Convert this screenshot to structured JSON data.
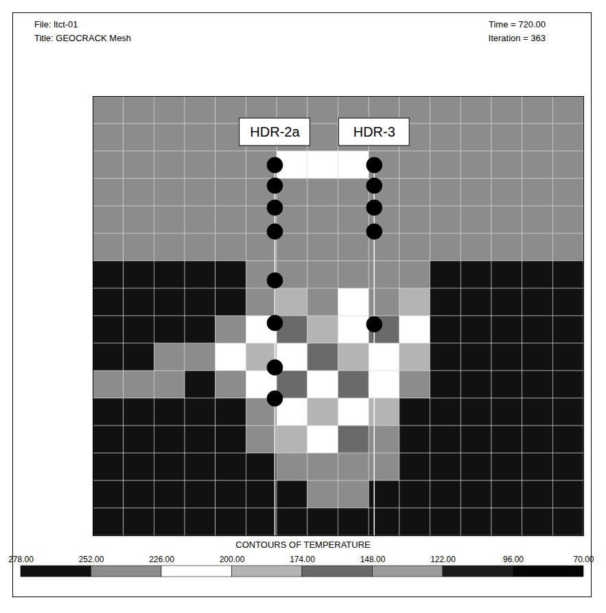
{
  "chart_data": {
    "type": "heatmap",
    "header": {
      "file": "File: ltct-01",
      "title": "Title: GEOCRACK Mesh",
      "time": "Time = 720.00",
      "iteration": "Iteration = 363"
    },
    "xlim": [
      0,
      16
    ],
    "ylim": [
      0,
      16
    ],
    "tick_labels": false,
    "cells": [
      [
        240,
        240,
        240,
        240,
        240,
        240,
        240,
        240,
        240,
        240,
        240,
        240,
        240,
        240,
        240,
        240
      ],
      [
        240,
        240,
        240,
        240,
        240,
        240,
        240,
        240,
        240,
        240,
        240,
        240,
        240,
        240,
        240,
        240
      ],
      [
        240,
        240,
        240,
        240,
        240,
        240,
        215,
        215,
        215,
        240,
        240,
        240,
        240,
        240,
        240,
        240
      ],
      [
        240,
        240,
        240,
        240,
        240,
        240,
        240,
        240,
        240,
        240,
        240,
        240,
        240,
        240,
        240,
        240
      ],
      [
        240,
        240,
        240,
        240,
        240,
        240,
        240,
        240,
        240,
        240,
        240,
        240,
        240,
        240,
        240,
        240
      ],
      [
        240,
        240,
        240,
        240,
        240,
        240,
        240,
        240,
        240,
        240,
        240,
        240,
        240,
        240,
        240,
        240
      ],
      [
        265,
        265,
        265,
        265,
        265,
        240,
        240,
        240,
        240,
        240,
        240,
        265,
        265,
        265,
        265,
        265
      ],
      [
        265,
        265,
        265,
        265,
        265,
        240,
        190,
        240,
        215,
        240,
        190,
        265,
        265,
        265,
        265,
        265
      ],
      [
        265,
        265,
        265,
        265,
        240,
        215,
        160,
        190,
        215,
        160,
        215,
        265,
        265,
        265,
        265,
        265
      ],
      [
        265,
        265,
        240,
        240,
        215,
        190,
        215,
        160,
        190,
        215,
        190,
        265,
        265,
        265,
        265,
        265
      ],
      [
        240,
        240,
        240,
        265,
        240,
        215,
        160,
        215,
        160,
        215,
        240,
        265,
        265,
        265,
        265,
        265
      ],
      [
        265,
        265,
        265,
        265,
        265,
        240,
        215,
        190,
        215,
        190,
        265,
        265,
        265,
        265,
        265,
        265
      ],
      [
        265,
        265,
        265,
        265,
        265,
        240,
        190,
        215,
        160,
        240,
        265,
        265,
        265,
        265,
        265,
        265
      ],
      [
        265,
        265,
        265,
        265,
        265,
        265,
        240,
        240,
        240,
        240,
        265,
        265,
        265,
        265,
        265,
        265
      ],
      [
        265,
        265,
        265,
        265,
        265,
        265,
        265,
        240,
        240,
        265,
        265,
        265,
        265,
        265,
        265,
        265
      ],
      [
        265,
        265,
        265,
        265,
        265,
        265,
        265,
        265,
        265,
        265,
        265,
        265,
        265,
        265,
        265,
        265
      ]
    ],
    "wells": [
      {
        "name": "HDR-2a",
        "x": 5.93,
        "points": [
          13.5,
          12.75,
          11.95,
          11.08,
          9.3,
          7.75,
          6.13,
          5.0
        ]
      },
      {
        "name": "HDR-3",
        "x": 9.17,
        "points": [
          13.5,
          12.75,
          11.95,
          11.08,
          7.7
        ]
      }
    ],
    "colorbar": {
      "title": "CONTOURS OF TEMPERATURE",
      "range": [
        278,
        70
      ],
      "ticks": [
        {
          "value": 278,
          "label": "278.00"
        },
        {
          "value": 252,
          "label": "252.00"
        },
        {
          "value": 226,
          "label": "226.00"
        },
        {
          "value": 200,
          "label": "200.00"
        },
        {
          "value": 174,
          "label": "174.00"
        },
        {
          "value": 148,
          "label": "148.00"
        },
        {
          "value": 122,
          "label": "122.00"
        },
        {
          "value": 96,
          "label": "96.00"
        },
        {
          "value": 70,
          "label": "70.00"
        }
      ],
      "colors": [
        "#111111",
        "#8c8c8c",
        "#ffffff",
        "#b4b4b4",
        "#6a6a6a",
        "#9c9c9c",
        "#1c1c1c",
        "#050505"
      ]
    }
  }
}
